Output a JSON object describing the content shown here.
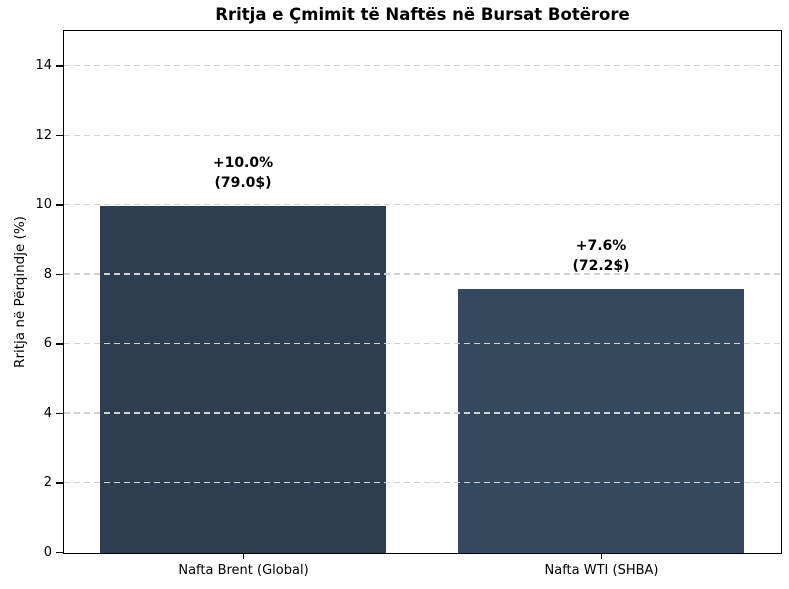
{
  "chart_data": {
    "type": "bar",
    "title": "Rritja e Çmimit të Naftës në Bursat Botërore",
    "xlabel": "",
    "ylabel": "Rritja në Përqindje (%)",
    "categories": [
      "Nafta Brent (Global)",
      "Nafta WTI (SHBA)"
    ],
    "values": [
      10.0,
      7.6
    ],
    "bar_labels": [
      {
        "percent": "+10.0%",
        "price": "(79.0$)"
      },
      {
        "percent": "+7.6%",
        "price": "(72.2$)"
      }
    ],
    "bar_colors": [
      "#2c3e50",
      "#34495e"
    ],
    "ylim": [
      0,
      15
    ],
    "yticks": [
      0,
      2,
      4,
      6,
      8,
      10,
      12,
      14
    ],
    "grid": {
      "axis": "y",
      "style": "dashed",
      "color": "#d2d2d2",
      "drawn_over_bars": true
    },
    "legend": "none",
    "background": "#ffffff",
    "axis_color": "#000000"
  }
}
